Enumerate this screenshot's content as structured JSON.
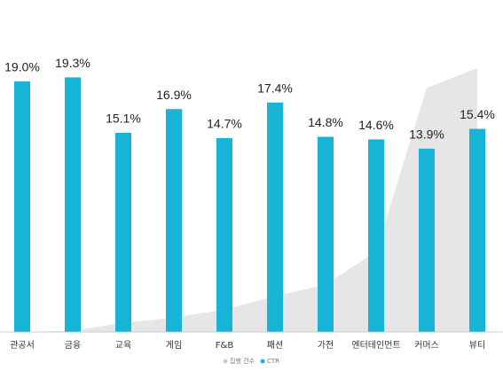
{
  "chart_data": {
    "type": "bar",
    "categories": [
      "관공서",
      "금융",
      "교육",
      "게임",
      "F&B",
      "패션",
      "가전",
      "엔터테인먼트",
      "커머스",
      "뷰티"
    ],
    "series": [
      {
        "name": "집행 건수",
        "type": "area",
        "color": "#e6e6e6",
        "values": [
          0,
          0.1,
          0.7,
          1.1,
          1.7,
          2.7,
          3.6,
          6.1,
          18.5,
          20.0
        ]
      },
      {
        "name": "CTR",
        "type": "bar",
        "color": "#17b4d6",
        "values": [
          19.0,
          19.3,
          15.1,
          16.9,
          14.7,
          17.4,
          14.8,
          14.6,
          13.9,
          15.4
        ],
        "value_labels": [
          "19.0%",
          "19.3%",
          "15.1%",
          "16.9%",
          "14.7%",
          "17.4%",
          "14.8%",
          "14.6%",
          "13.9%",
          "15.4%"
        ]
      }
    ],
    "ylim": [
      0,
      20
    ]
  }
}
